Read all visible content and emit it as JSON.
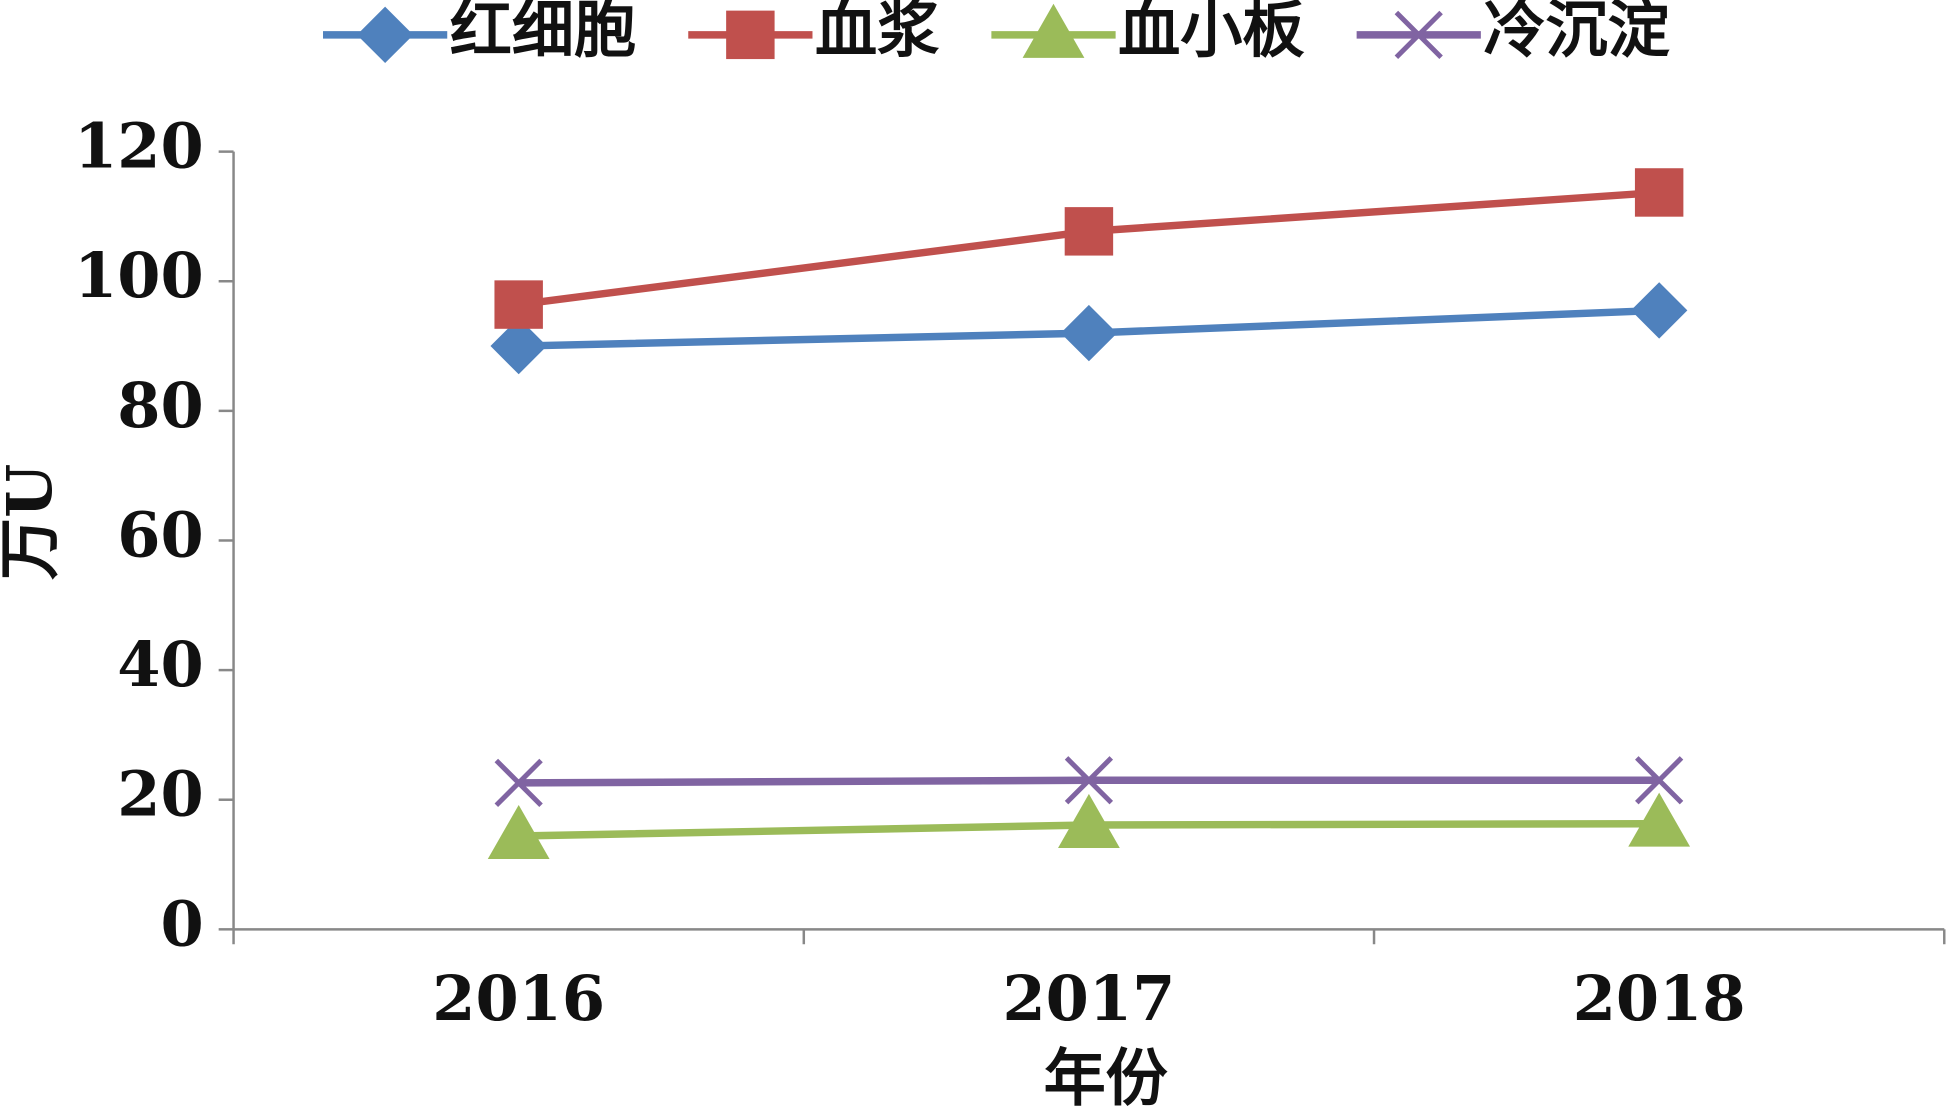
{
  "chart_data": {
    "type": "line",
    "categories": [
      "2016",
      "2017",
      "2018"
    ],
    "series": [
      {
        "name": "红细胞",
        "color": "#4f81bd",
        "marker": "diamond",
        "values": [
          90,
          92,
          95.5
        ]
      },
      {
        "name": "血浆",
        "color": "#c0504d",
        "marker": "square",
        "values": [
          96.4,
          107.7,
          113.7
        ]
      },
      {
        "name": "血小板",
        "color": "#9bbb59",
        "marker": "triangle",
        "values": [
          14.4,
          16.1,
          16.3
        ]
      },
      {
        "name": "冷沉淀",
        "color": "#8064a2",
        "marker": "x",
        "values": [
          22.6,
          23,
          23
        ]
      }
    ],
    "x_label": "年份",
    "y_label": "万U",
    "ylim": [
      0,
      120
    ],
    "yticks": [
      0,
      20,
      40,
      60,
      80,
      100,
      120
    ],
    "grid": false,
    "legend": "top"
  }
}
